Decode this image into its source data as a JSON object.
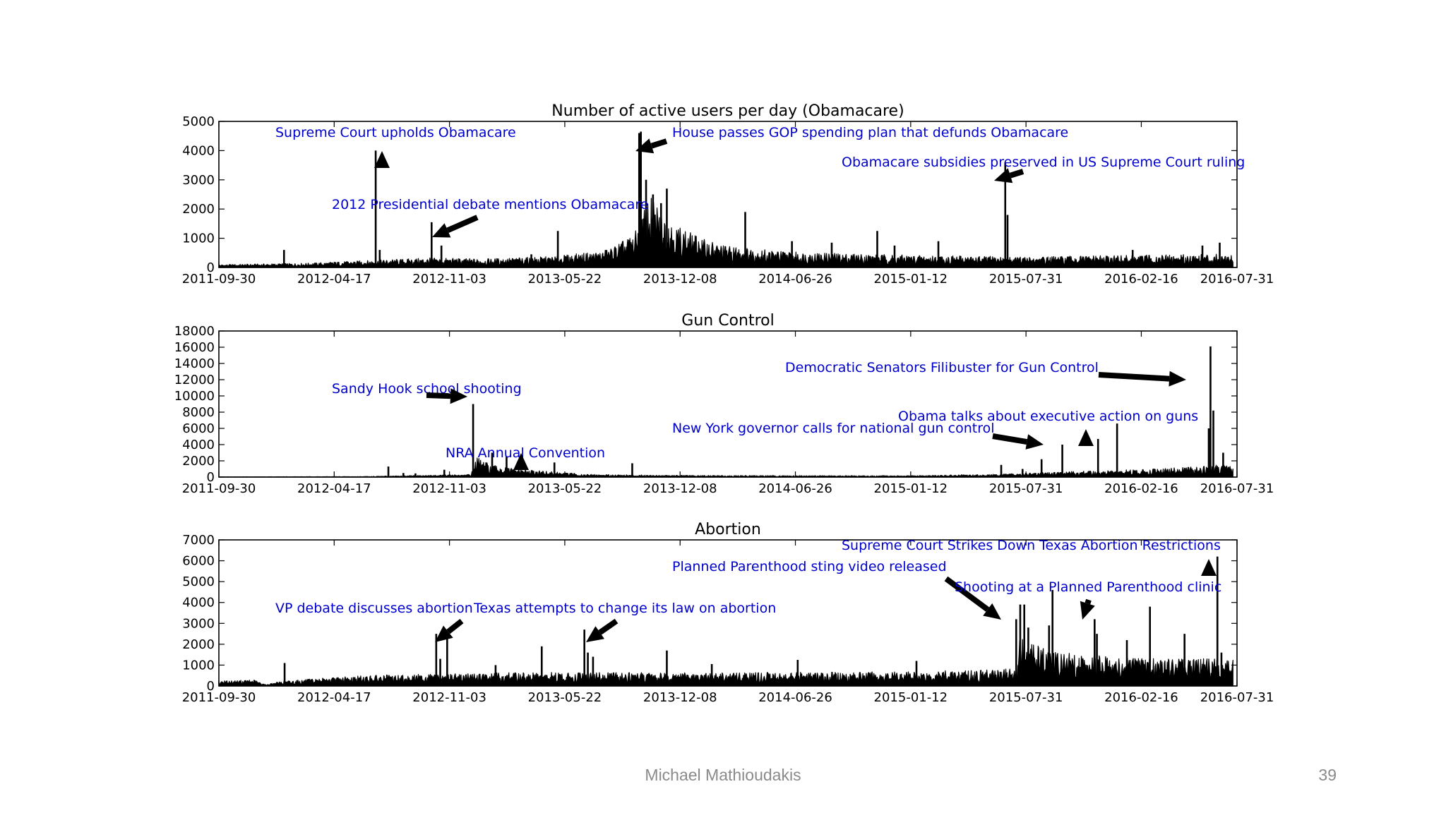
{
  "footer": {
    "author": "Michael Mathioudakis",
    "page": "39"
  },
  "colors": {
    "line": "#000000",
    "annotation": "#0000cc",
    "background": "#ffffff"
  },
  "chart_data": [
    {
      "type": "line",
      "title": "Number of active users per day (Obamacare)",
      "xlabel": "",
      "ylabel": "",
      "x_ticks": [
        "2011-09-30",
        "2012-04-17",
        "2012-11-03",
        "2013-05-22",
        "2013-12-08",
        "2014-06-26",
        "2015-01-12",
        "2015-07-31",
        "2016-02-16",
        "2016-07-31"
      ],
      "xlim": [
        "2011-09-30",
        "2016-07-31"
      ],
      "ylim": [
        0,
        5000
      ],
      "y_ticks": [
        0,
        1000,
        2000,
        3000,
        4000,
        5000
      ],
      "series": [
        {
          "baseline": [
            [
              "2011-09-30",
              60
            ],
            [
              "2012-03-01",
              90
            ],
            [
              "2012-06-01",
              140
            ],
            [
              "2012-10-01",
              200
            ],
            [
              "2013-01-01",
              180
            ],
            [
              "2013-05-01",
              230
            ],
            [
              "2013-08-01",
              350
            ],
            [
              "2013-09-20",
              700
            ],
            [
              "2013-10-15",
              1500
            ],
            [
              "2013-11-30",
              900
            ],
            [
              "2014-01-15",
              600
            ],
            [
              "2014-03-01",
              450
            ],
            [
              "2014-05-01",
              380
            ],
            [
              "2014-07-01",
              320
            ],
            [
              "2015-01-01",
              260
            ],
            [
              "2015-07-31",
              220
            ],
            [
              "2016-01-01",
              250
            ],
            [
              "2016-07-24",
              280
            ]
          ],
          "spikes": [
            [
              "2012-01-21",
              600
            ],
            [
              "2012-06-28",
              4000
            ],
            [
              "2012-07-05",
              600
            ],
            [
              "2012-10-03",
              1550
            ],
            [
              "2012-10-20",
              750
            ],
            [
              "2013-03-25",
              450
            ],
            [
              "2013-05-10",
              1250
            ],
            [
              "2013-08-01",
              600
            ],
            [
              "2013-09-28",
              4600
            ],
            [
              "2013-10-01",
              4650
            ],
            [
              "2013-10-10",
              3000
            ],
            [
              "2013-10-22",
              2500
            ],
            [
              "2013-11-05",
              2200
            ],
            [
              "2013-11-15",
              2700
            ],
            [
              "2014-03-31",
              1900
            ],
            [
              "2014-06-20",
              900
            ],
            [
              "2014-08-28",
              850
            ],
            [
              "2014-11-15",
              1250
            ],
            [
              "2014-12-15",
              750
            ],
            [
              "2015-03-01",
              900
            ],
            [
              "2015-06-25",
              3600
            ],
            [
              "2015-06-29",
              1800
            ],
            [
              "2016-02-01",
              600
            ],
            [
              "2016-06-01",
              750
            ],
            [
              "2016-07-01",
              850
            ]
          ]
        }
      ],
      "annotations": [
        {
          "text": "Supreme Court upholds Obamacare",
          "date": "2012-06-28",
          "value": 4000
        },
        {
          "text": "2012 Presidential debate mentions Obamacare",
          "date": "2012-10-03",
          "value": 1000
        },
        {
          "text": "House passes GOP spending plan that defunds Obamacare",
          "date": "2013-09-28",
          "value": 4000
        },
        {
          "text": "Obamacare subsidies preserved in US Supreme Court ruling",
          "date": "2015-06-25",
          "value": 2900
        }
      ]
    },
    {
      "type": "line",
      "title": "Gun Control",
      "xlabel": "",
      "ylabel": "",
      "x_ticks": [
        "2011-09-30",
        "2012-04-17",
        "2012-11-03",
        "2013-05-22",
        "2013-12-08",
        "2014-06-26",
        "2015-01-12",
        "2015-07-31",
        "2016-02-16",
        "2016-07-31"
      ],
      "xlim": [
        "2011-09-30",
        "2016-07-31"
      ],
      "ylim": [
        0,
        18000
      ],
      "y_ticks": [
        0,
        2000,
        4000,
        6000,
        8000,
        10000,
        12000,
        14000,
        16000,
        18000
      ],
      "series": [
        {
          "baseline": [
            [
              "2011-09-30",
              20
            ],
            [
              "2012-06-01",
              40
            ],
            [
              "2012-12-10",
              200
            ],
            [
              "2012-12-20",
              1500
            ],
            [
              "2013-01-15",
              900
            ],
            [
              "2013-03-01",
              600
            ],
            [
              "2013-05-01",
              400
            ],
            [
              "2013-07-01",
              200
            ],
            [
              "2014-01-01",
              120
            ],
            [
              "2015-01-01",
              100
            ],
            [
              "2015-06-01",
              200
            ],
            [
              "2015-10-01",
              400
            ],
            [
              "2016-01-01",
              500
            ],
            [
              "2016-06-01",
              800
            ],
            [
              "2016-07-24",
              1000
            ]
          ],
          "spikes": [
            [
              "2012-07-20",
              1300
            ],
            [
              "2012-08-15",
              500
            ],
            [
              "2012-09-05",
              450
            ],
            [
              "2012-10-25",
              900
            ],
            [
              "2012-12-14",
              9000
            ],
            [
              "2013-01-16",
              3000
            ],
            [
              "2013-02-10",
              2500
            ],
            [
              "2013-05-04",
              1800
            ],
            [
              "2013-09-16",
              1700
            ],
            [
              "2015-06-18",
              1500
            ],
            [
              "2015-07-25",
              1000
            ],
            [
              "2015-08-27",
              2200
            ],
            [
              "2015-10-02",
              4000
            ],
            [
              "2015-12-03",
              4700
            ],
            [
              "2016-01-05",
              6600
            ],
            [
              "2016-06-12",
              6000
            ],
            [
              "2016-06-15",
              16100
            ],
            [
              "2016-06-20",
              8200
            ],
            [
              "2016-07-07",
              3000
            ]
          ]
        }
      ],
      "annotations": [
        {
          "text": "Sandy Hook school shooting",
          "date": "2012-12-14",
          "value": 9500
        },
        {
          "text": "NRA Annual Convention",
          "date": "2013-05-04",
          "value": 1400
        },
        {
          "text": "New York governor calls for national gun control",
          "date": "2015-10-02",
          "value": 4000
        },
        {
          "text": "Obama talks about executive action on guns",
          "date": "2016-01-05",
          "value": 5500
        },
        {
          "text": "Democratic Senators Filibuster for Gun Control",
          "date": "2016-06-15",
          "value": 12000
        }
      ]
    },
    {
      "type": "line",
      "title": "Abortion",
      "xlabel": "",
      "ylabel": "",
      "x_ticks": [
        "2011-09-30",
        "2012-04-17",
        "2012-11-03",
        "2013-05-22",
        "2013-12-08",
        "2014-06-26",
        "2015-01-12",
        "2015-07-31",
        "2016-02-16",
        "2016-07-31"
      ],
      "xlim": [
        "2011-09-30",
        "2016-07-31"
      ],
      "ylim": [
        0,
        7000
      ],
      "y_ticks": [
        0,
        1000,
        2000,
        3000,
        4000,
        5000,
        6000,
        7000
      ],
      "series": [
        {
          "baseline": [
            [
              "2011-09-30",
              150
            ],
            [
              "2011-12-01",
              180
            ],
            [
              "2011-12-20",
              40
            ],
            [
              "2012-01-20",
              150
            ],
            [
              "2012-06-01",
              300
            ],
            [
              "2012-10-01",
              350
            ],
            [
              "2013-01-01",
              380
            ],
            [
              "2013-07-01",
              400
            ],
            [
              "2014-01-01",
              380
            ],
            [
              "2015-01-01",
              420
            ],
            [
              "2015-07-14",
              500
            ],
            [
              "2015-07-20",
              1400
            ],
            [
              "2015-09-15",
              1000
            ],
            [
              "2015-12-01",
              900
            ],
            [
              "2016-02-01",
              800
            ],
            [
              "2016-07-24",
              800
            ]
          ],
          "spikes": [
            [
              "2012-01-22",
              1100
            ],
            [
              "2012-10-11",
              2500
            ],
            [
              "2012-10-18",
              1300
            ],
            [
              "2012-10-30",
              2300
            ],
            [
              "2013-01-22",
              1000
            ],
            [
              "2013-04-12",
              1900
            ],
            [
              "2013-06-25",
              2700
            ],
            [
              "2013-07-01",
              1600
            ],
            [
              "2013-07-10",
              1400
            ],
            [
              "2013-11-15",
              1700
            ],
            [
              "2014-02-01",
              1050
            ],
            [
              "2014-06-30",
              1250
            ],
            [
              "2015-01-22",
              1200
            ],
            [
              "2015-07-14",
              3200
            ],
            [
              "2015-07-21",
              3900
            ],
            [
              "2015-07-28",
              3900
            ],
            [
              "2015-08-04",
              2800
            ],
            [
              "2015-09-09",
              2900
            ],
            [
              "2015-09-15",
              4600
            ],
            [
              "2015-11-27",
              3200
            ],
            [
              "2015-12-01",
              2500
            ],
            [
              "2016-01-22",
              2200
            ],
            [
              "2016-03-02",
              3800
            ],
            [
              "2016-05-01",
              2500
            ],
            [
              "2016-06-27",
              6200
            ],
            [
              "2016-07-04",
              1600
            ]
          ]
        }
      ],
      "annotations": [
        {
          "text": "VP debate discusses abortion",
          "date": "2012-10-11",
          "value": 2000
        },
        {
          "text": "Texas attempts to change its law on abortion",
          "date": "2013-06-25",
          "value": 2100
        },
        {
          "text": "Planned Parenthood sting video released",
          "date": "2015-07-14",
          "value": 3100
        },
        {
          "text": "Shooting at a Planned Parenthood clinic",
          "date": "2015-11-27",
          "value": 3100
        },
        {
          "text": "Supreme Court Strikes Down Texas Abortion Restrictions",
          "date": "2016-06-27",
          "value": 6100
        }
      ]
    }
  ]
}
